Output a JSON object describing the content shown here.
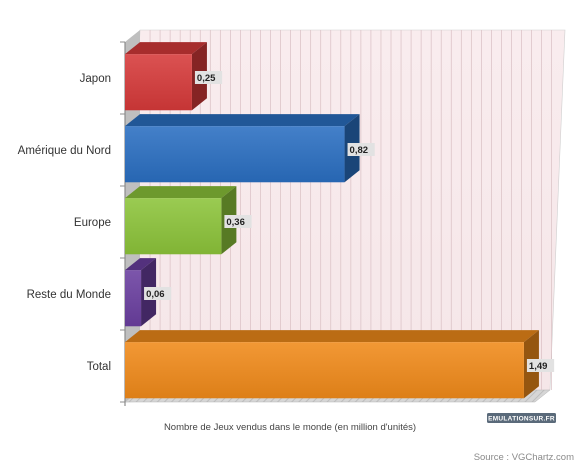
{
  "chart_data": {
    "type": "bar",
    "orientation": "horizontal",
    "categories": [
      "Japon",
      "Amérique du Nord",
      "Europe",
      "Reste du Monde",
      "Total"
    ],
    "values": [
      0.25,
      0.82,
      0.36,
      0.06,
      1.49
    ],
    "value_labels": [
      "0,25",
      "0,82",
      "0,36",
      "0,06",
      "1,49"
    ],
    "bar_colors": [
      "#d63a3a",
      "#2a6fc2",
      "#8cc43a",
      "#6a3fa0",
      "#f08a1a"
    ],
    "xlabel": "Nombre de Jeux vendus dans le monde (en million d'unités)",
    "ylabel": "",
    "title": "",
    "xlim": [
      0,
      1.55
    ],
    "grid": "vertical",
    "legend": "none",
    "style": "3d"
  },
  "footer": {
    "source": "Source : VGChartz.com",
    "logo": "EMULATIONSUR.FR"
  }
}
